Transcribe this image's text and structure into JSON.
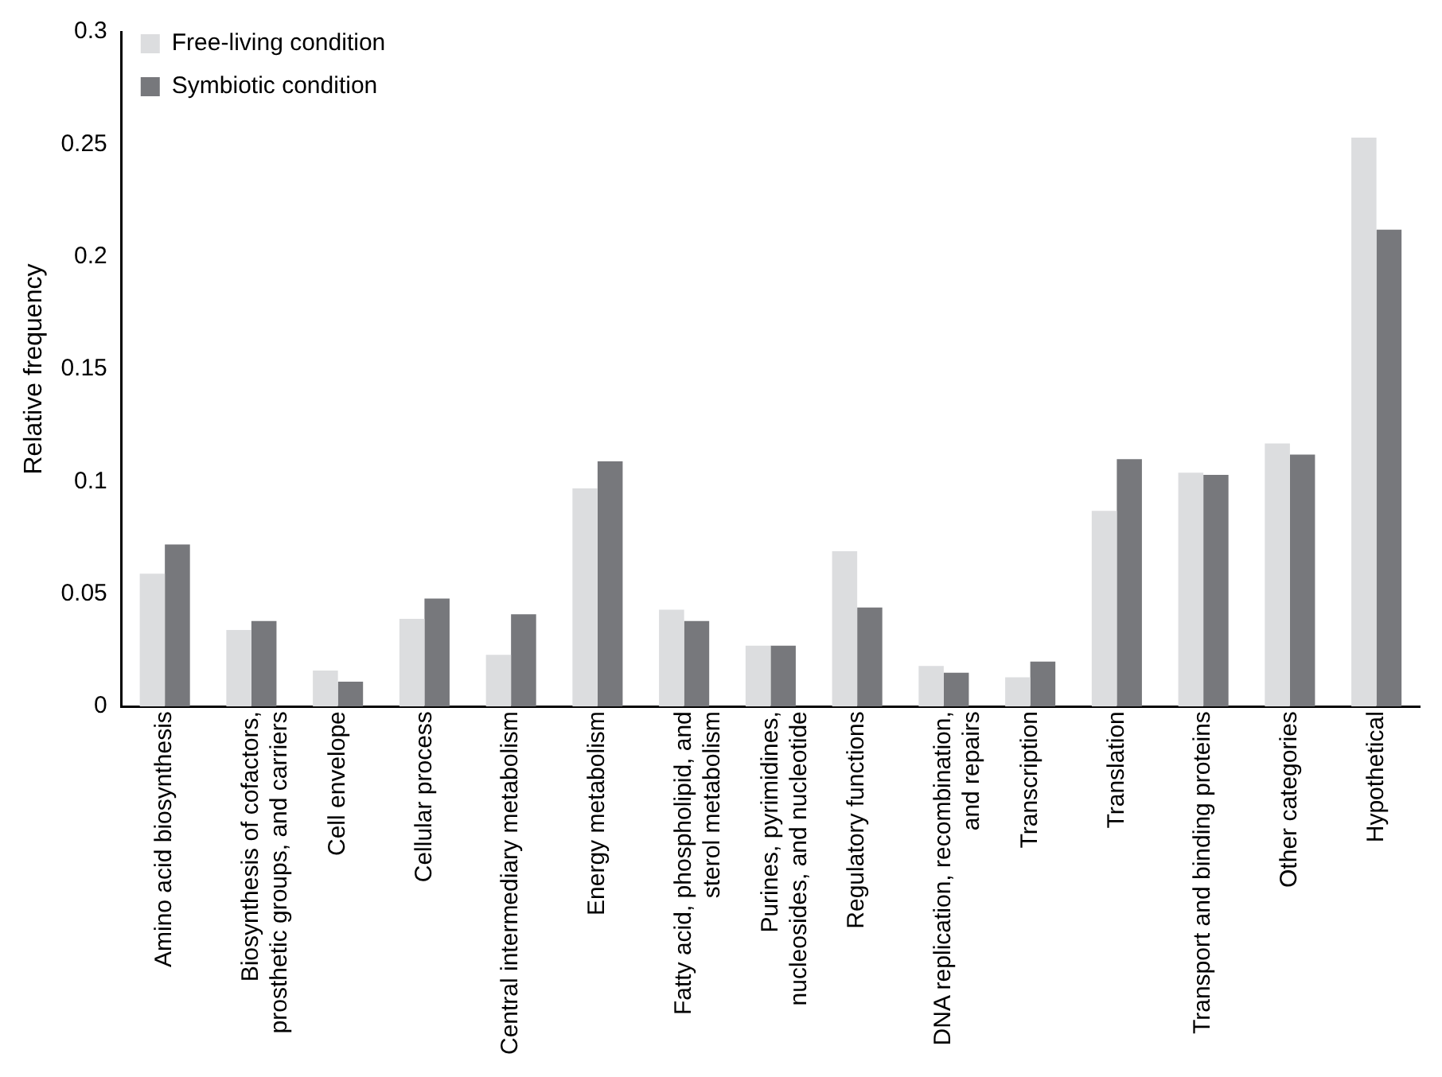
{
  "chart_data": {
    "type": "bar",
    "ylabel": "Relative frequency",
    "categories": [
      "Amino acid biosynthesis",
      "Biosynthesis of cofactors, prosthetic groups, and carriers",
      "Cell envelope",
      "Cellular process",
      "Central intermediary metabolism",
      "Energy metabolism",
      "Fatty acid, phospholipid, and sterol metabolism",
      "Purines, pyrimidines, nucleosides, and nucleotide",
      "Regulatory functions",
      "DNA replication, recombination, and repairs",
      "Transcription",
      "Translation",
      "Transport and binding proteins",
      "Other categories",
      "Hypothetical"
    ],
    "series": [
      {
        "name": "Free-living condition",
        "color": "#dcdddf",
        "values": [
          0.059,
          0.034,
          0.016,
          0.039,
          0.023,
          0.097,
          0.043,
          0.027,
          0.069,
          0.018,
          0.013,
          0.087,
          0.104,
          0.117,
          0.253
        ]
      },
      {
        "name": "Symbiotic condition",
        "color": "#77787c",
        "values": [
          0.072,
          0.038,
          0.011,
          0.048,
          0.041,
          0.109,
          0.038,
          0.027,
          0.044,
          0.015,
          0.02,
          0.11,
          0.103,
          0.112,
          0.212
        ]
      }
    ],
    "ylim": [
      0,
      0.3
    ],
    "yticks": [
      0,
      0.05,
      0.1,
      0.15,
      0.2,
      0.25,
      0.3
    ],
    "grid": false,
    "legend": "top left"
  }
}
